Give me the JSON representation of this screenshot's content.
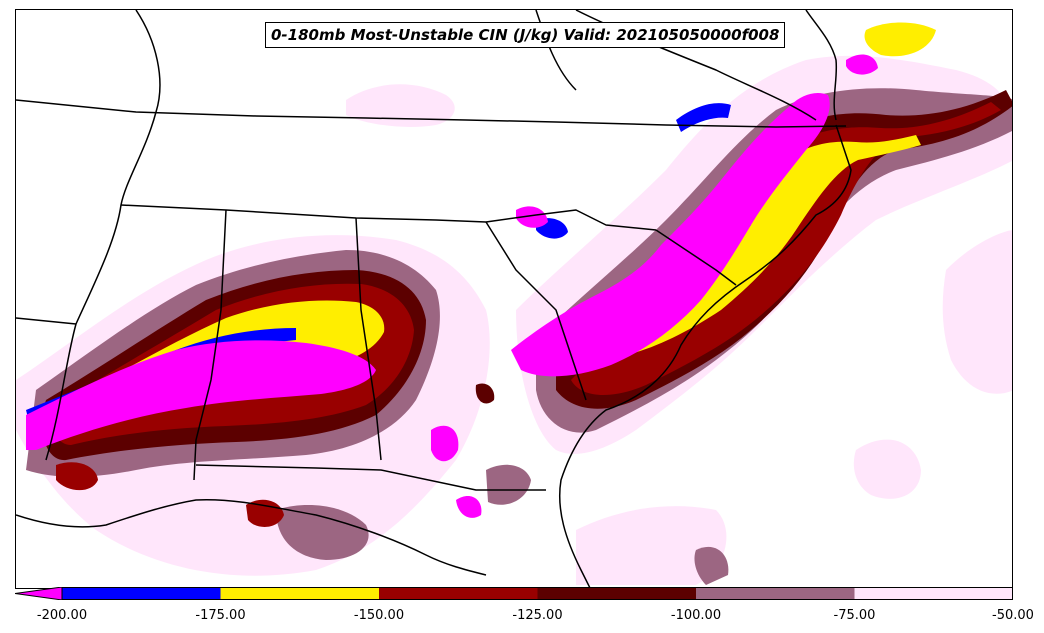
{
  "title": "0-180mb Most-Unstable CIN (J/kg) Valid: 202105050000f008",
  "colorbar": {
    "levels": [
      -200,
      -175,
      -150,
      -125,
      -100,
      -75,
      -50
    ],
    "tick_labels": [
      "-200.00",
      "-175.00",
      "-150.00",
      "-125.00",
      "-100.00",
      "-75.00",
      "-50.00"
    ],
    "extend": "min",
    "under_color": "#ff00ff",
    "colors": [
      "#0000ff",
      "#ffee00",
      "#990000",
      "#5c0000",
      "#9c6682",
      "#ffe6fb"
    ]
  },
  "map": {
    "region": "Southeastern United States",
    "background": "#ffffff",
    "outline_color": "#000000"
  }
}
